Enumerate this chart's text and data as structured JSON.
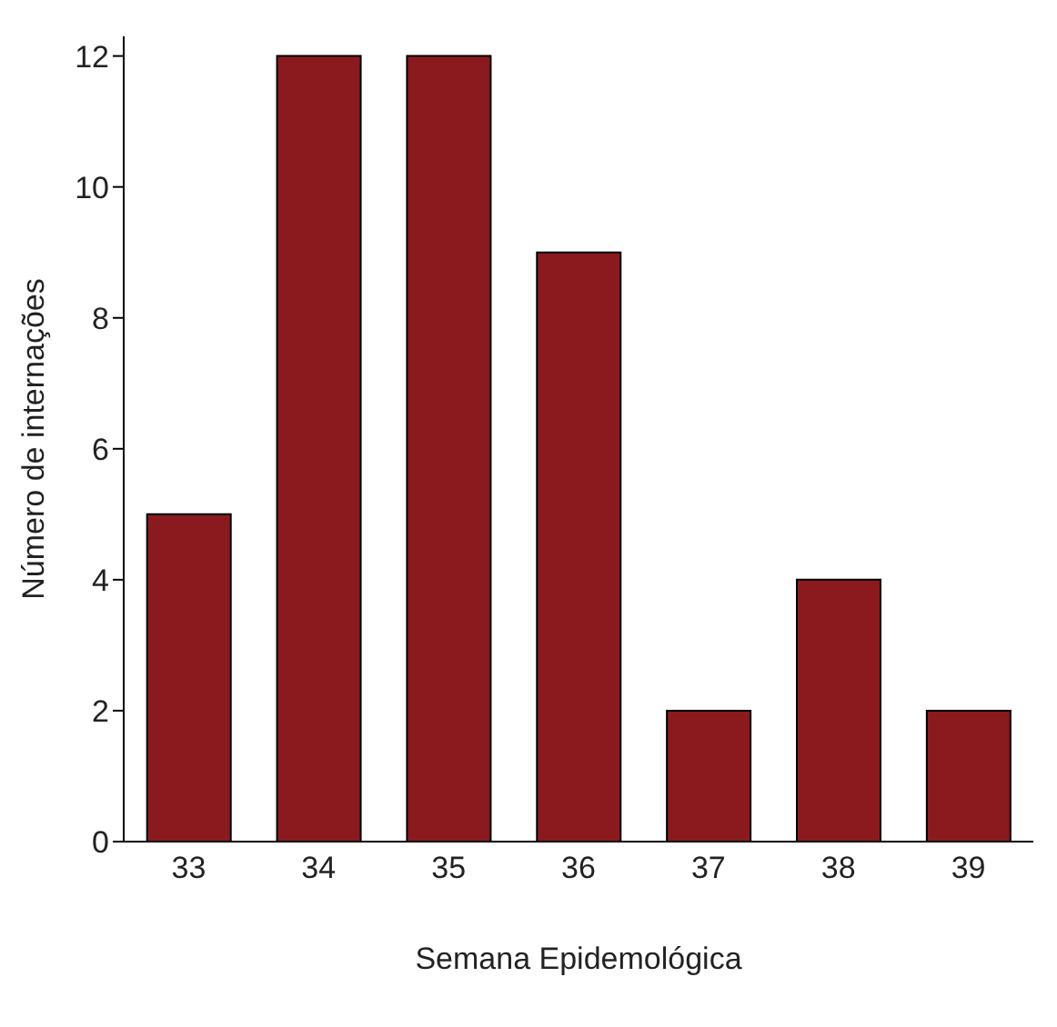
{
  "chart_data": {
    "type": "bar",
    "xlabel": "Semana Epidemológica",
    "ylabel": "Número de internações",
    "categories": [
      "33",
      "34",
      "35",
      "36",
      "37",
      "38",
      "39"
    ],
    "values": [
      5,
      12,
      12,
      9,
      2,
      4,
      2
    ],
    "color": "#8b1a1f",
    "ylim": [
      0,
      12.3
    ],
    "yticks": [
      0,
      2,
      4,
      6,
      8,
      10,
      12
    ],
    "grid": false,
    "legend": false
  }
}
